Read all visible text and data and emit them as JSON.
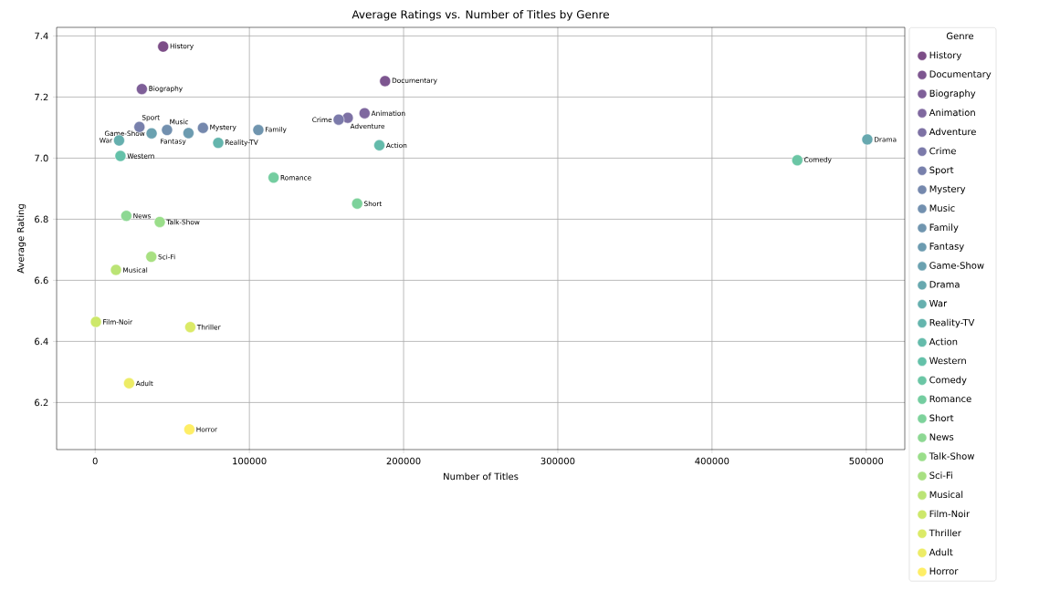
{
  "chart_data": {
    "type": "scatter",
    "title": "Average Ratings vs. Number of Titles by Genre",
    "xlabel": "Number of Titles",
    "ylabel": "Average Rating",
    "legend_title": "Genre",
    "legend": "right",
    "grid": true,
    "marker": "circle",
    "xlim": [
      -25000,
      525000
    ],
    "xticks": [
      0,
      100000,
      200000,
      300000,
      400000,
      500000
    ],
    "ylim": [
      6.046,
      7.428
    ],
    "yticks": [
      6.2,
      6.4,
      6.6,
      6.8,
      {
        "value": 7,
        "label": "7.0"
      },
      7.2,
      7.4
    ],
    "series": [
      {
        "name": "History",
        "color": "#7c4d87",
        "x": [
          44100
        ],
        "values": [
          7.365
        ]
      },
      {
        "name": "Documentary",
        "color": "#7d5690",
        "x": [
          188000
        ],
        "values": [
          7.252
        ]
      },
      {
        "name": "Biography",
        "color": "#7e5f98",
        "x": [
          30300
        ],
        "values": [
          7.226
        ]
      },
      {
        "name": "Animation",
        "color": "#7f689f",
        "x": [
          174700
        ],
        "values": [
          7.147
        ]
      },
      {
        "name": "Adventure",
        "color": "#7d71a4",
        "x": [
          163800
        ],
        "values": [
          7.132
        ]
      },
      {
        "name": "Crime",
        "color": "#7b7aaa",
        "x": [
          157900
        ],
        "values": [
          7.126
        ]
      },
      {
        "name": "Sport",
        "color": "#7880ac",
        "x": [
          28700
        ],
        "values": [
          7.102
        ]
      },
      {
        "name": "Mystery",
        "color": "#7588ad",
        "x": [
          69900
        ],
        "values": [
          7.099
        ]
      },
      {
        "name": "Music",
        "color": "#7290af",
        "x": [
          46600
        ],
        "values": [
          7.092
        ]
      },
      {
        "name": "Family",
        "color": "#7095af",
        "x": [
          105800
        ],
        "values": [
          7.092
        ]
      },
      {
        "name": "Fantasy",
        "color": "#6c9bb0",
        "x": [
          60500
        ],
        "values": [
          7.082
        ]
      },
      {
        "name": "Game-Show",
        "color": "#6aa1b0",
        "x": [
          36600
        ],
        "values": [
          7.081
        ]
      },
      {
        "name": "Drama",
        "color": "#67a8af",
        "x": [
          500700
        ],
        "values": [
          7.061
        ]
      },
      {
        "name": "War",
        "color": "#65afae",
        "x": [
          15500
        ],
        "values": [
          7.058
        ]
      },
      {
        "name": "Reality-TV",
        "color": "#64b5ad",
        "x": [
          79800
        ],
        "values": [
          7.05
        ]
      },
      {
        "name": "Action",
        "color": "#64bbab",
        "x": [
          184300
        ],
        "values": [
          7.042
        ]
      },
      {
        "name": "Western",
        "color": "#64c1a9",
        "x": [
          16400
        ],
        "values": [
          7.007
        ]
      },
      {
        "name": "Comedy",
        "color": "#6bc6a5",
        "x": [
          455300
        ],
        "values": [
          6.993
        ]
      },
      {
        "name": "Romance",
        "color": "#74cda0",
        "x": [
          115700
        ],
        "values": [
          6.936
        ]
      },
      {
        "name": "Short",
        "color": "#7dd29b",
        "x": [
          169900
        ],
        "values": [
          6.851
        ]
      },
      {
        "name": "News",
        "color": "#8dd893",
        "x": [
          20200
        ],
        "values": [
          6.811
        ]
      },
      {
        "name": "Talk-Show",
        "color": "#9ade8a",
        "x": [
          41900
        ],
        "values": [
          6.791
        ]
      },
      {
        "name": "Sci-Fi",
        "color": "#a8e082",
        "x": [
          36400
        ],
        "values": [
          6.677
        ]
      },
      {
        "name": "Musical",
        "color": "#bbe475",
        "x": [
          13500
        ],
        "values": [
          6.634
        ]
      },
      {
        "name": "Film-Noir",
        "color": "#cde86a",
        "x": [
          500
        ],
        "values": [
          6.464
        ]
      },
      {
        "name": "Thriller",
        "color": "#dbea67",
        "x": [
          61700
        ],
        "values": [
          6.447
        ]
      },
      {
        "name": "Adult",
        "color": "#edec66",
        "x": [
          22000
        ],
        "values": [
          6.263
        ]
      },
      {
        "name": "Horror",
        "color": "#feee66",
        "x": [
          61100
        ],
        "values": [
          6.112
        ]
      }
    ]
  }
}
